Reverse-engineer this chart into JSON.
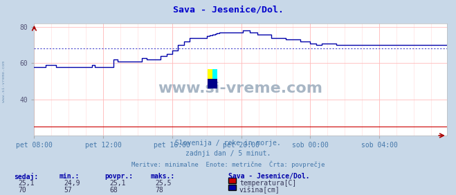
{
  "title": "Sava - Jesenice/Dol.",
  "title_color": "#0000cc",
  "bg_color": "#c8d8e8",
  "plot_bg_color": "#ffffff",
  "x_tick_labels": [
    "pet 08:00",
    "pet 12:00",
    "pet 16:00",
    "pet 20:00",
    "sob 00:00",
    "sob 04:00"
  ],
  "x_tick_positions": [
    0,
    48,
    96,
    144,
    192,
    240
  ],
  "total_points": 288,
  "ylim": [
    20,
    82
  ],
  "yticks": [
    40,
    60,
    80
  ],
  "grid_color_major": "#ffbbbb",
  "grid_color_minor": "#ffd8d8",
  "avg_line_color": "#4444cc",
  "avg_line_value_vishina": 68,
  "temp_color": "#cc0000",
  "vishina_color": "#0000aa",
  "subtitle1": "Slovenija / reke in morje.",
  "subtitle2": "zadnji dan / 5 minut.",
  "subtitle3": "Meritve: minimalne  Enote: metrične  Črta: povprečje",
  "subtitle_color": "#4477aa",
  "table_color": "#0000aa",
  "table_header": [
    "sedaj:",
    "min.:",
    "povpr.:",
    "maks.:"
  ],
  "temp_values": [
    "25,1",
    "24,9",
    "25,1",
    "25,5"
  ],
  "vishina_values": [
    "70",
    "57",
    "68",
    "78"
  ],
  "legend_title": "Sava - Jesenice/Dol.",
  "legend_temp_label": "temperatura[C]",
  "legend_vishina_label": "višina[cm]",
  "watermark": "www.si-vreme.com",
  "watermark_color": "#99aabb",
  "left_label": "www.si-vreme.com",
  "left_label_color": "#7799bb",
  "arrow_color": "#aa0000"
}
